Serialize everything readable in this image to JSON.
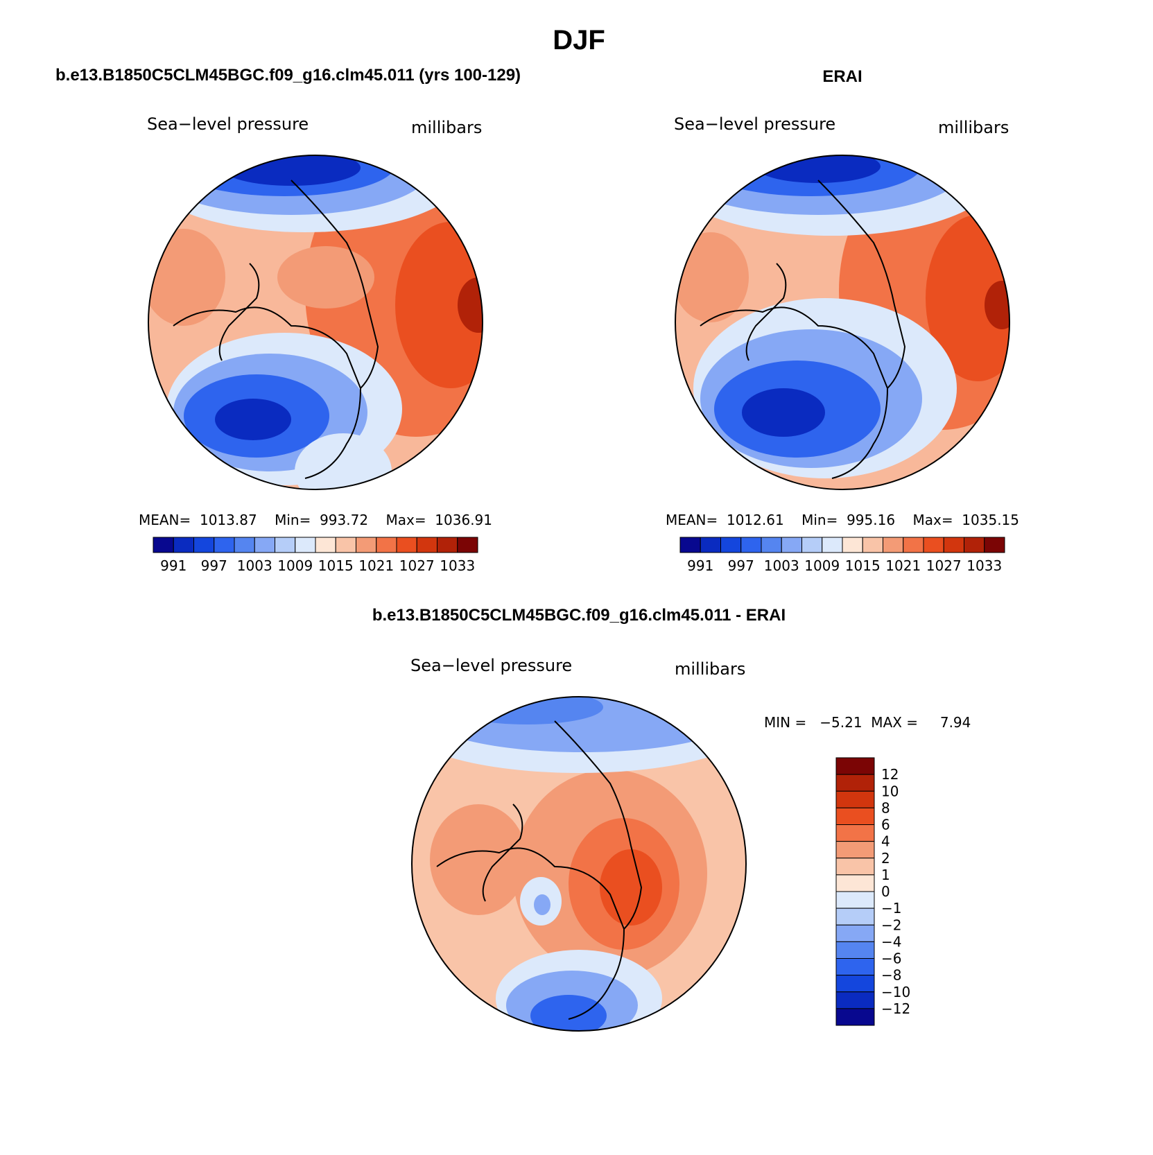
{
  "title": "DJF",
  "colors": {
    "seq": [
      "#08088f",
      "#0a2bc0",
      "#1446dd",
      "#2e64ee",
      "#5585f0",
      "#86a8f5",
      "#b5cdf8",
      "#dce9fb",
      "#fde6d6",
      "#f9c4a8",
      "#f39b76",
      "#f27347",
      "#ea4f20",
      "#d2360e",
      "#b12208",
      "#7b0505"
    ],
    "diff": [
      "#08088f",
      "#0a2bc0",
      "#1446dd",
      "#2e64ee",
      "#5585f0",
      "#86a8f5",
      "#b5cdf8",
      "#dce9fb",
      "#fde6d6",
      "#f9c4a8",
      "#f39b76",
      "#f27347",
      "#ea4f20",
      "#d2360e",
      "#b12208",
      "#7b0505"
    ]
  },
  "panels": [
    {
      "id": "model",
      "heading": "b.e13.B1850C5CLM45BGC.f09_g16.clm45.011 (yrs 100-129)",
      "left_label": "Sea−level pressure",
      "right_label": "millibars",
      "stats": "MEAN=  1013.87    Min=  993.72    Max=  1036.91"
    },
    {
      "id": "obs",
      "heading": "ERAI",
      "left_label": "Sea−level pressure",
      "right_label": "millibars",
      "stats": "MEAN=  1012.61    Min=  995.16    Max=  1035.15"
    },
    {
      "id": "diff",
      "heading": "b.e13.B1850C5CLM45BGC.f09_g16.clm45.011 - ERAI",
      "left_label": "Sea−level pressure",
      "right_label": "millibars",
      "stats": "MIN =   −5.21  MAX =     7.94"
    }
  ],
  "horizontal_colorbar": {
    "labels": [
      "991",
      "997",
      "1003",
      "1009",
      "1015",
      "1021",
      "1027",
      "1033"
    ]
  },
  "vertical_colorbar": {
    "labels": [
      "12",
      "10",
      "8",
      "6",
      "4",
      "2",
      "1",
      "0",
      "−1",
      "−2",
      "−4",
      "−6",
      "−8",
      "−10",
      "−12"
    ]
  },
  "chart_data": [
    {
      "type": "heatmap",
      "title": "b.e13.B1850C5CLM45BGC.f09_g16.clm45.011 (yrs 100-129)",
      "variable": "Sea-level pressure",
      "units": "millibars",
      "season": "DJF",
      "projection": "polar stereographic (north pole)",
      "mean": 1013.87,
      "min": 993.72,
      "max": 1036.91,
      "contour_levels": [
        991,
        994,
        997,
        1000,
        1003,
        1006,
        1009,
        1012,
        1015,
        1018,
        1021,
        1024,
        1027,
        1030,
        1033
      ],
      "colorbar_tick_labels": [
        991,
        997,
        1003,
        1009,
        1015,
        1021,
        1027,
        1033
      ],
      "legend_placement": "bottom"
    },
    {
      "type": "heatmap",
      "title": "ERAI",
      "variable": "Sea-level pressure",
      "units": "millibars",
      "season": "DJF",
      "projection": "polar stereographic (north pole)",
      "mean": 1012.61,
      "min": 995.16,
      "max": 1035.15,
      "contour_levels": [
        991,
        994,
        997,
        1000,
        1003,
        1006,
        1009,
        1012,
        1015,
        1018,
        1021,
        1024,
        1027,
        1030,
        1033
      ],
      "colorbar_tick_labels": [
        991,
        997,
        1003,
        1009,
        1015,
        1021,
        1027,
        1033
      ],
      "legend_placement": "bottom"
    },
    {
      "type": "heatmap",
      "title": "b.e13.B1850C5CLM45BGC.f09_g16.clm45.011 - ERAI",
      "variable": "Sea-level pressure",
      "units": "millibars",
      "season": "DJF",
      "projection": "polar stereographic (north pole)",
      "min": -5.21,
      "max": 7.94,
      "contour_levels": [
        -12,
        -10,
        -8,
        -6,
        -4,
        -2,
        -1,
        0,
        1,
        2,
        4,
        6,
        8,
        10,
        12
      ],
      "legend_placement": "right"
    }
  ]
}
